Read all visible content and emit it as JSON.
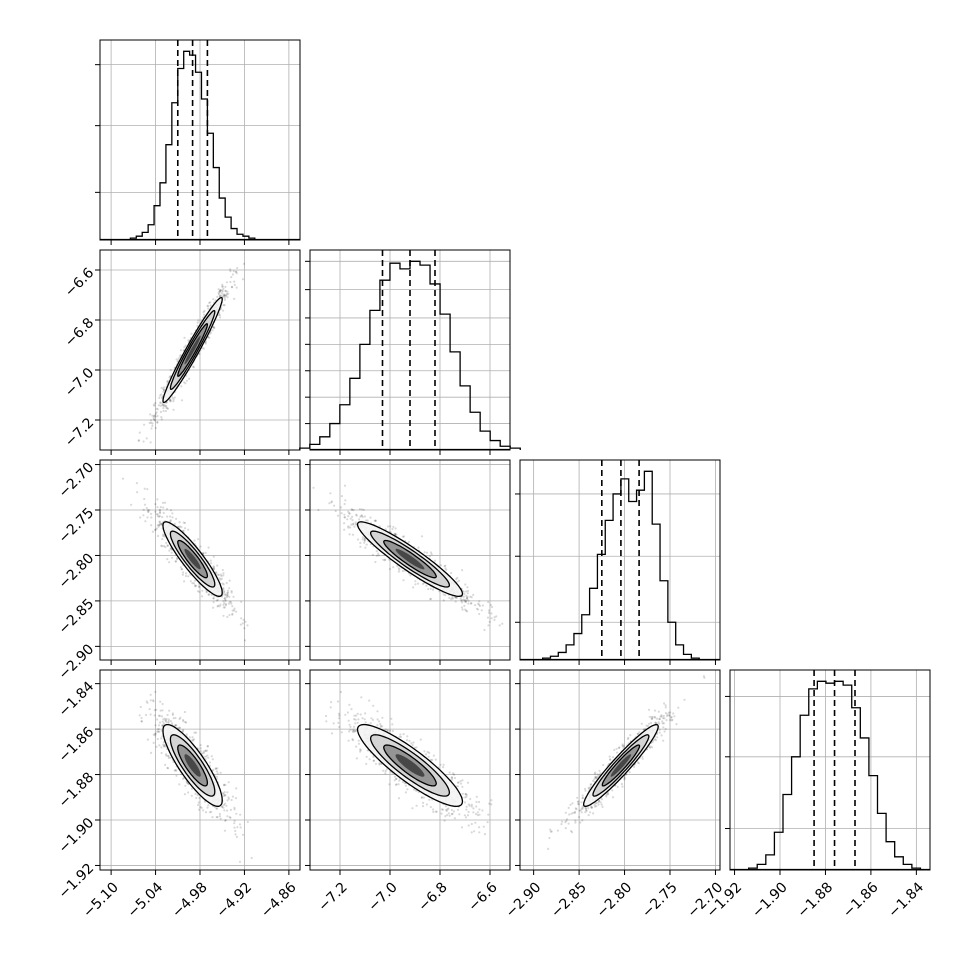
{
  "chart_data": {
    "type": "corner",
    "n_params": 4,
    "grid": true,
    "quantile_lines": "dashed",
    "params": [
      {
        "range": [
          -5.115,
          -4.845
        ],
        "ticks": [
          -5.1,
          -5.04,
          -4.98,
          -4.92,
          -4.86
        ],
        "tick_labels": [
          "−5.10",
          "−5.04",
          "−4.98",
          "−4.92",
          "−4.86"
        ],
        "quantiles": [
          -5.01,
          -4.99,
          -4.97
        ],
        "hist": [
          1,
          2,
          4,
          8,
          18,
          30,
          50,
          72,
          90,
          99,
          97,
          88,
          74,
          56,
          38,
          22,
          12,
          6,
          3,
          2,
          1
        ],
        "hist_yticks": [
          25,
          60,
          92
        ]
      },
      {
        "range": [
          -7.32,
          -6.52
        ],
        "ticks": [
          -7.2,
          -7.0,
          -6.8,
          -6.6
        ],
        "tick_labels": [
          "−7.2",
          "−7.0",
          "−6.8",
          "−6.6"
        ],
        "quantiles": [
          -7.03,
          -6.92,
          -6.82
        ],
        "hist": [
          1,
          3,
          7,
          14,
          24,
          38,
          56,
          74,
          90,
          99,
          96,
          100,
          98,
          88,
          72,
          52,
          34,
          20,
          10,
          5,
          2,
          1
        ],
        "hist_yticks": [
          14,
          28,
          42,
          56,
          70,
          85,
          100
        ]
      },
      {
        "range": [
          -2.915,
          -2.695
        ],
        "ticks": [
          -2.9,
          -2.85,
          -2.8,
          -2.75,
          -2.7
        ],
        "tick_labels": [
          "−2.90",
          "−2.85",
          "−2.80",
          "−2.75",
          "−2.70"
        ],
        "quantiles": [
          -2.825,
          -2.804,
          -2.784
        ],
        "hist": [
          1,
          2,
          4,
          8,
          14,
          24,
          38,
          56,
          74,
          88,
          96,
          84,
          90,
          100,
          72,
          42,
          20,
          8,
          3,
          1
        ],
        "hist_yticks": [
          20,
          55,
          88
        ]
      },
      {
        "range": [
          -1.922,
          -1.834
        ],
        "ticks": [
          -1.92,
          -1.9,
          -1.88,
          -1.86,
          -1.84
        ],
        "tick_labels": [
          "−1.92",
          "−1.90",
          "−1.88",
          "−1.86",
          "−1.84"
        ],
        "quantiles": [
          -1.885,
          -1.876,
          -1.867
        ],
        "hist": [
          1,
          3,
          8,
          20,
          40,
          60,
          82,
          96,
          100,
          99,
          100,
          98,
          86,
          70,
          50,
          30,
          15,
          7,
          3,
          1
        ],
        "hist_yticks": [
          22,
          60,
          92
        ]
      }
    ],
    "pairs": [
      {
        "row": 1,
        "col": 0,
        "corr": 0.97
      },
      {
        "row": 2,
        "col": 0,
        "corr": -0.9
      },
      {
        "row": 2,
        "col": 1,
        "corr": -0.93
      },
      {
        "row": 3,
        "col": 0,
        "corr": -0.85
      },
      {
        "row": 3,
        "col": 1,
        "corr": -0.88
      },
      {
        "row": 3,
        "col": 2,
        "corr": 0.95
      }
    ]
  }
}
